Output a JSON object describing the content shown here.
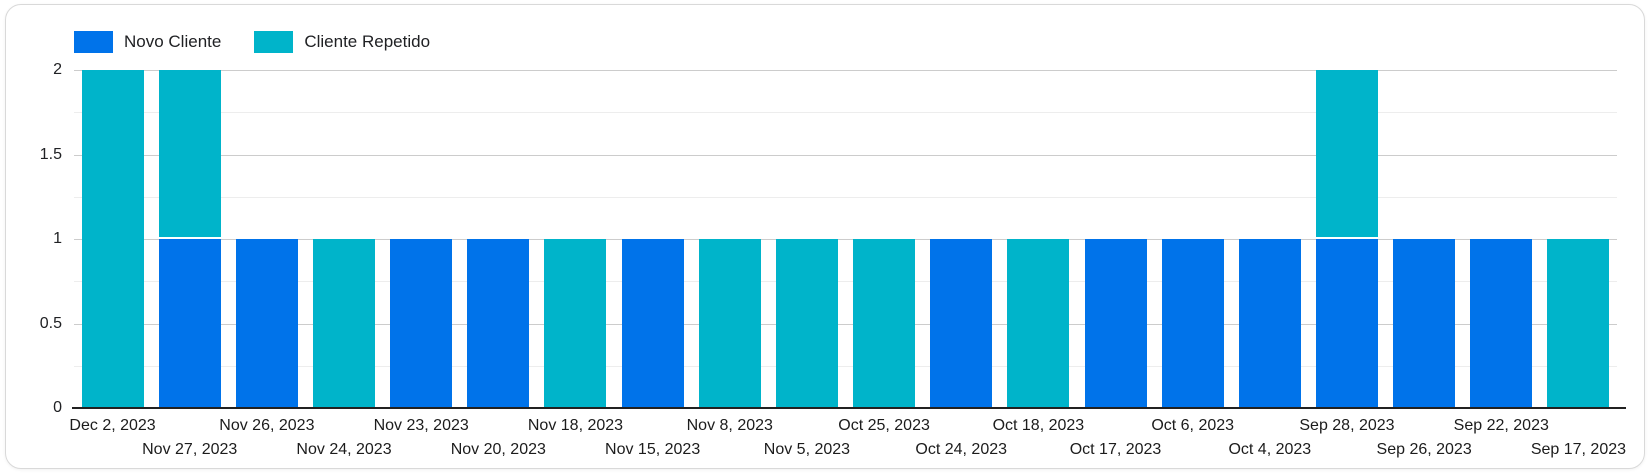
{
  "legend": [
    {
      "label": "Novo Cliente",
      "color": "#0073ea"
    },
    {
      "label": "Cliente Repetido",
      "color": "#00b4ca"
    }
  ],
  "chart_data": {
    "type": "bar",
    "stacked": true,
    "title": "",
    "xlabel": "",
    "ylabel": "",
    "categories": [
      "Dec 2, 2023",
      "Nov 27, 2023",
      "Nov 26, 2023",
      "Nov 24, 2023",
      "Nov 23, 2023",
      "Nov 20, 2023",
      "Nov 18, 2023",
      "Nov 15, 2023",
      "Nov 8, 2023",
      "Nov 5, 2023",
      "Oct 25, 2023",
      "Oct 24, 2023",
      "Oct 18, 2023",
      "Oct 17, 2023",
      "Oct 6, 2023",
      "Oct 4, 2023",
      "Sep 28, 2023",
      "Sep 26, 2023",
      "Sep 22, 2023",
      "Sep 17, 2023"
    ],
    "series": [
      {
        "name": "Novo Cliente",
        "color": "#0073ea",
        "values": [
          0,
          1,
          1,
          0,
          1,
          1,
          0,
          1,
          0,
          0,
          0,
          1,
          0,
          1,
          1,
          1,
          1,
          1,
          1,
          0
        ]
      },
      {
        "name": "Cliente Repetido",
        "color": "#00b4ca",
        "values": [
          2,
          1,
          0,
          1,
          0,
          0,
          1,
          0,
          1,
          1,
          1,
          0,
          1,
          0,
          0,
          0,
          1,
          0,
          0,
          1
        ]
      }
    ],
    "ylim": [
      0,
      2
    ],
    "yticks": [
      0,
      0.5,
      1,
      1.5,
      2
    ],
    "ytick_labels": [
      "0",
      "0.5",
      "1",
      "1.5",
      "2"
    ],
    "minor_gridlines": [
      0.25,
      0.75,
      1.25,
      1.75
    ],
    "grid": true,
    "legend_position": "top-left",
    "xtick_label_rows": 2
  },
  "colors": {
    "bar_blue": "#0073ea",
    "bar_teal": "#00b4ca",
    "gridline_major": "#cccccc",
    "gridline_minor": "#ededed",
    "axis_line": "#212121",
    "label_text": "#202124",
    "card_border": "#d9d9d9",
    "background": "#ffffff"
  }
}
